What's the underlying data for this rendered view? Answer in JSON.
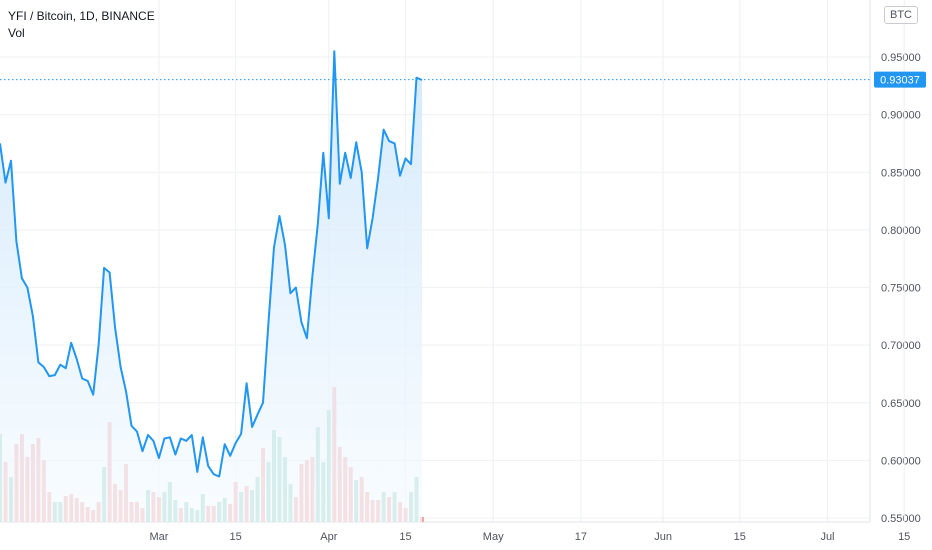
{
  "legend": {
    "symbol": "YFI / Bitcoin, 1D, BINANCE",
    "volume_label": "Vol"
  },
  "currency_button": "BTC",
  "colors": {
    "line": "#2196f3",
    "area_top": "#cfe7fb",
    "area_bottom": "#f6fbff",
    "vol_up": "#8fd1c0",
    "vol_down": "#f3a3a3",
    "grid": "#eef0f3",
    "price_label_bg": "#2196f3"
  },
  "chart_data": {
    "type": "line",
    "symbol": "YFI / Bitcoin",
    "interval": "1D",
    "exchange": "BINANCE",
    "last_price": "0.93037",
    "y_ticks": [
      "0.95000",
      "0.90000",
      "0.85000",
      "0.80000",
      "0.75000",
      "0.70000",
      "0.65000",
      "0.60000",
      "0.55000"
    ],
    "ylim": [
      0.55,
      0.97
    ],
    "x_ticks": [
      {
        "label": "Mar",
        "day": 29
      },
      {
        "label": "15",
        "day": 43
      },
      {
        "label": "Apr",
        "day": 60
      },
      {
        "label": "15",
        "day": 74
      },
      {
        "label": "May",
        "day": 90
      },
      {
        "label": "17",
        "day": 106
      },
      {
        "label": "Jun",
        "day": 121
      },
      {
        "label": "15",
        "day": 135
      },
      {
        "label": "Jul",
        "day": 151
      },
      {
        "label": "15",
        "day": 165
      }
    ],
    "xlim": [
      0,
      170
    ],
    "grid": true,
    "series": [
      {
        "values": [
          0.875,
          0.841,
          0.86,
          0.79,
          0.758,
          0.75,
          0.725,
          0.685,
          0.681,
          0.673,
          0.674,
          0.683,
          0.68,
          0.702,
          0.688,
          0.671,
          0.669,
          0.657,
          0.7,
          0.767,
          0.763,
          0.715,
          0.681,
          0.66,
          0.63,
          0.625,
          0.608,
          0.622,
          0.617,
          0.602,
          0.619,
          0.62,
          0.605,
          0.619,
          0.617,
          0.622,
          0.59,
          0.62,
          0.595,
          0.588,
          0.586,
          0.614,
          0.604,
          0.615,
          0.623,
          0.667,
          0.629,
          0.64,
          0.65,
          0.72,
          0.785,
          0.812,
          0.787,
          0.745,
          0.75,
          0.72,
          0.706,
          0.76,
          0.805,
          0.867,
          0.81,
          0.955,
          0.84,
          0.867,
          0.845,
          0.876,
          0.85,
          0.784,
          0.81,
          0.845,
          0.887,
          0.877,
          0.875,
          0.847,
          0.862,
          0.857,
          0.932,
          0.93
        ]
      }
    ],
    "volume": [
      {
        "v": 88,
        "up": true
      },
      {
        "v": 60,
        "up": false
      },
      {
        "v": 45,
        "up": true
      },
      {
        "v": 78,
        "up": false
      },
      {
        "v": 88,
        "up": false
      },
      {
        "v": 65,
        "up": false
      },
      {
        "v": 78,
        "up": false
      },
      {
        "v": 84,
        "up": false
      },
      {
        "v": 62,
        "up": false
      },
      {
        "v": 30,
        "up": false
      },
      {
        "v": 20,
        "up": true
      },
      {
        "v": 20,
        "up": true
      },
      {
        "v": 26,
        "up": false
      },
      {
        "v": 28,
        "up": false
      },
      {
        "v": 24,
        "up": false
      },
      {
        "v": 20,
        "up": false
      },
      {
        "v": 15,
        "up": false
      },
      {
        "v": 12,
        "up": false
      },
      {
        "v": 20,
        "up": false
      },
      {
        "v": 55,
        "up": true
      },
      {
        "v": 100,
        "up": false
      },
      {
        "v": 38,
        "up": false
      },
      {
        "v": 32,
        "up": false
      },
      {
        "v": 58,
        "up": false
      },
      {
        "v": 20,
        "up": false
      },
      {
        "v": 20,
        "up": false
      },
      {
        "v": 14,
        "up": false
      },
      {
        "v": 32,
        "up": true
      },
      {
        "v": 30,
        "up": false
      },
      {
        "v": 25,
        "up": false
      },
      {
        "v": 30,
        "up": true
      },
      {
        "v": 40,
        "up": true
      },
      {
        "v": 22,
        "up": true
      },
      {
        "v": 14,
        "up": false
      },
      {
        "v": 20,
        "up": true
      },
      {
        "v": 14,
        "up": true
      },
      {
        "v": 12,
        "up": true
      },
      {
        "v": 28,
        "up": true
      },
      {
        "v": 16,
        "up": false
      },
      {
        "v": 16,
        "up": false
      },
      {
        "v": 20,
        "up": true
      },
      {
        "v": 24,
        "up": true
      },
      {
        "v": 18,
        "up": false
      },
      {
        "v": 40,
        "up": false
      },
      {
        "v": 30,
        "up": true
      },
      {
        "v": 36,
        "up": false
      },
      {
        "v": 32,
        "up": true
      },
      {
        "v": 45,
        "up": true
      },
      {
        "v": 74,
        "up": false
      },
      {
        "v": 60,
        "up": true
      },
      {
        "v": 92,
        "up": true
      },
      {
        "v": 85,
        "up": true
      },
      {
        "v": 65,
        "up": true
      },
      {
        "v": 38,
        "up": true
      },
      {
        "v": 25,
        "up": false
      },
      {
        "v": 58,
        "up": false
      },
      {
        "v": 62,
        "up": false
      },
      {
        "v": 65,
        "up": false
      },
      {
        "v": 95,
        "up": true
      },
      {
        "v": 60,
        "up": true
      },
      {
        "v": 112,
        "up": true
      },
      {
        "v": 135,
        "up": false
      },
      {
        "v": 75,
        "up": false
      },
      {
        "v": 65,
        "up": false
      },
      {
        "v": 55,
        "up": false
      },
      {
        "v": 42,
        "up": true
      },
      {
        "v": 45,
        "up": false
      },
      {
        "v": 30,
        "up": false
      },
      {
        "v": 22,
        "up": false
      },
      {
        "v": 22,
        "up": false
      },
      {
        "v": 30,
        "up": true
      },
      {
        "v": 25,
        "up": false
      },
      {
        "v": 30,
        "up": true
      },
      {
        "v": 20,
        "up": false
      },
      {
        "v": 14,
        "up": false
      },
      {
        "v": 30,
        "up": true
      },
      {
        "v": 45,
        "up": true
      },
      {
        "v": 5,
        "up": false
      }
    ]
  }
}
